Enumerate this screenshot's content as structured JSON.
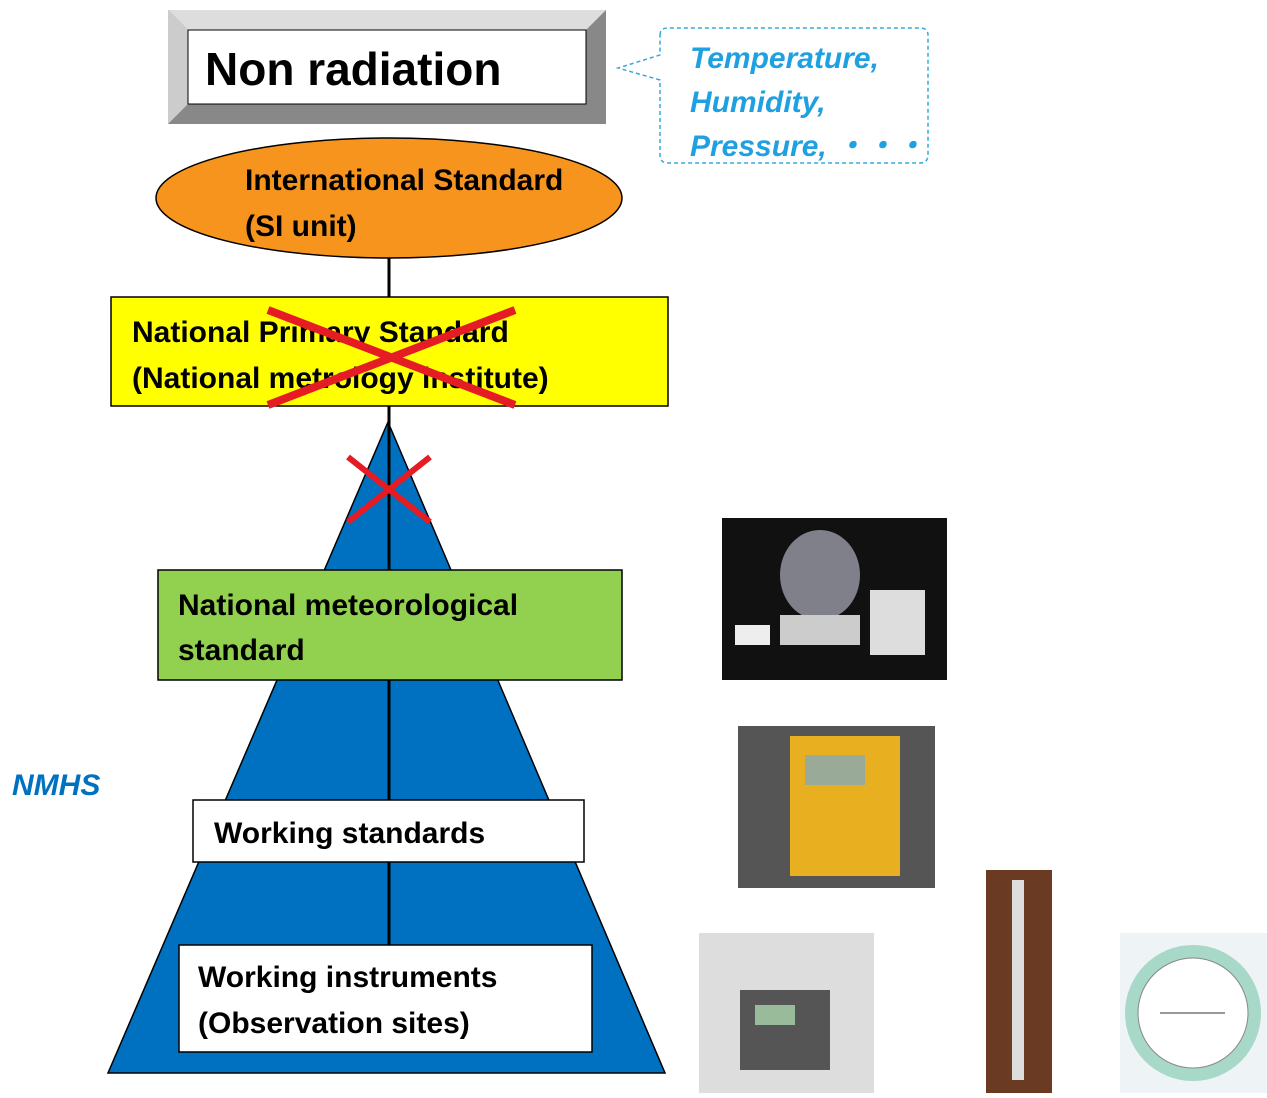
{
  "title": "Non radiation",
  "callout": [
    "Temperature,",
    "Humidity,",
    "Pressure, ・・・"
  ],
  "levels": [
    {
      "lines": [
        "International Standard",
        "(SI unit)"
      ]
    },
    {
      "lines": [
        "National Primary Standard",
        "(National metrology institute)"
      ]
    },
    {
      "lines": [
        "National meteorological",
        "standard"
      ]
    },
    {
      "lines": [
        "Working standards"
      ]
    },
    {
      "lines": [
        "Working instruments",
        "(Observation sites)"
      ]
    }
  ],
  "side_label": "NMHS"
}
